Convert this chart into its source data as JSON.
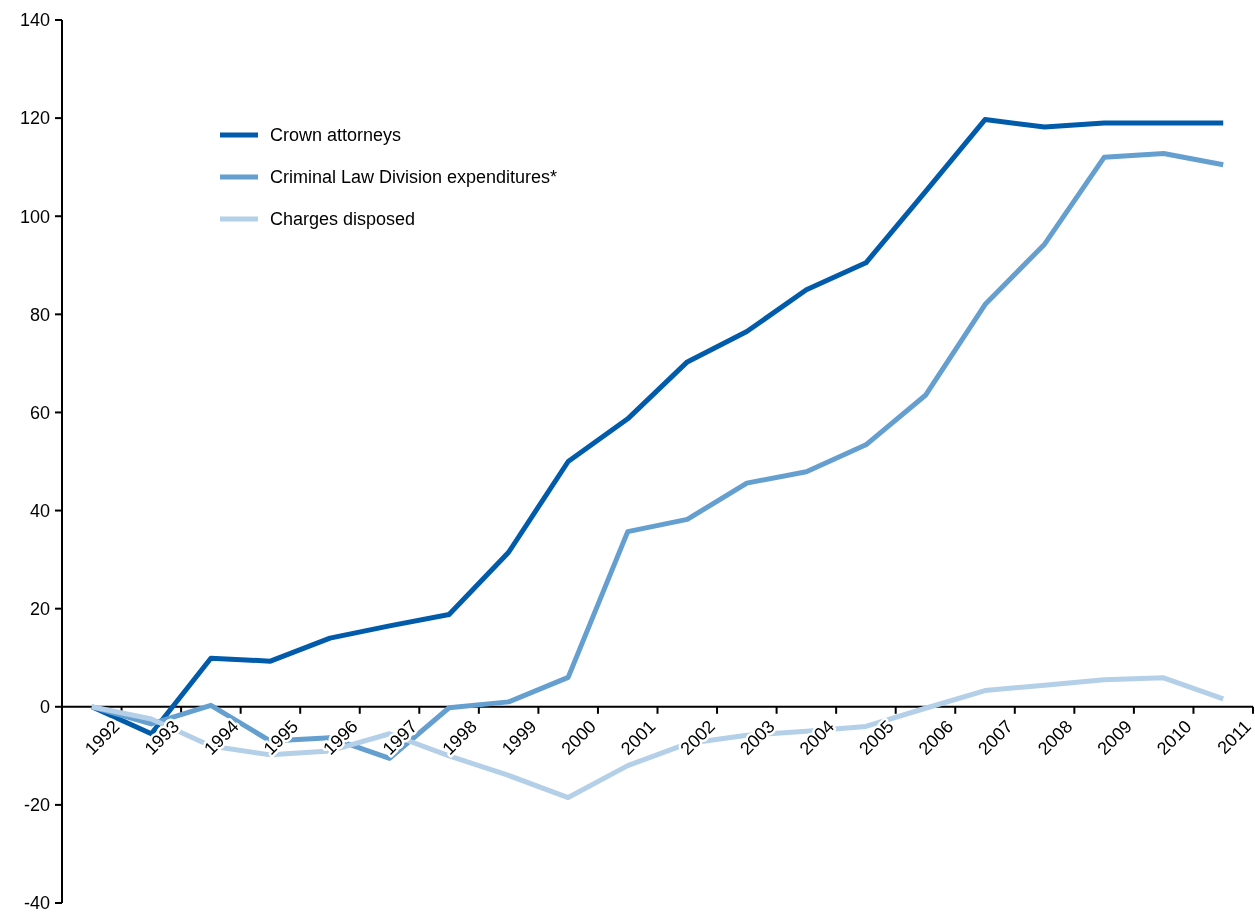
{
  "chart_data": {
    "type": "line",
    "categories": [
      "1992",
      "1993",
      "1994",
      "1995",
      "1996",
      "1997",
      "1998",
      "1999",
      "2000",
      "2001",
      "2002",
      "2003",
      "2004",
      "2005",
      "2006",
      "2007",
      "2008",
      "2009",
      "2010",
      "2011"
    ],
    "series": [
      {
        "name": "Crown attorneys",
        "color": "#005baa",
        "values": [
          0,
          -5.5,
          9.9,
          9.3,
          14,
          16.5,
          18.8,
          31.5,
          50,
          58.7,
          70.3,
          76.5,
          85,
          90.5,
          105,
          119.7,
          118.2,
          119,
          119,
          119
        ]
      },
      {
        "name": "Criminal Law Division expenditures*",
        "color": "#649fd0",
        "values": [
          0,
          -3.5,
          0.3,
          -7,
          -6.3,
          -10.5,
          -0.2,
          1,
          6,
          35.7,
          38.2,
          45.6,
          47.9,
          53.4,
          63.5,
          82,
          94.3,
          112,
          112.8,
          110.5
        ]
      },
      {
        "name": "Charges disposed",
        "color": "#b4cfe8",
        "values": [
          0,
          -2.5,
          -8,
          -9.8,
          -9,
          -5.5,
          -10,
          -14,
          -18.5,
          -12,
          -7.5,
          -5.8,
          -5,
          -4,
          -0.3,
          3.3,
          4.4,
          5.5,
          5.9,
          1.6
        ]
      }
    ],
    "ylim": [
      -40,
      140
    ],
    "yticks": [
      -40,
      -20,
      0,
      20,
      40,
      60,
      80,
      100,
      120,
      140
    ],
    "grid": false,
    "legend": "top left",
    "marker": "none",
    "line_style": "solid"
  }
}
